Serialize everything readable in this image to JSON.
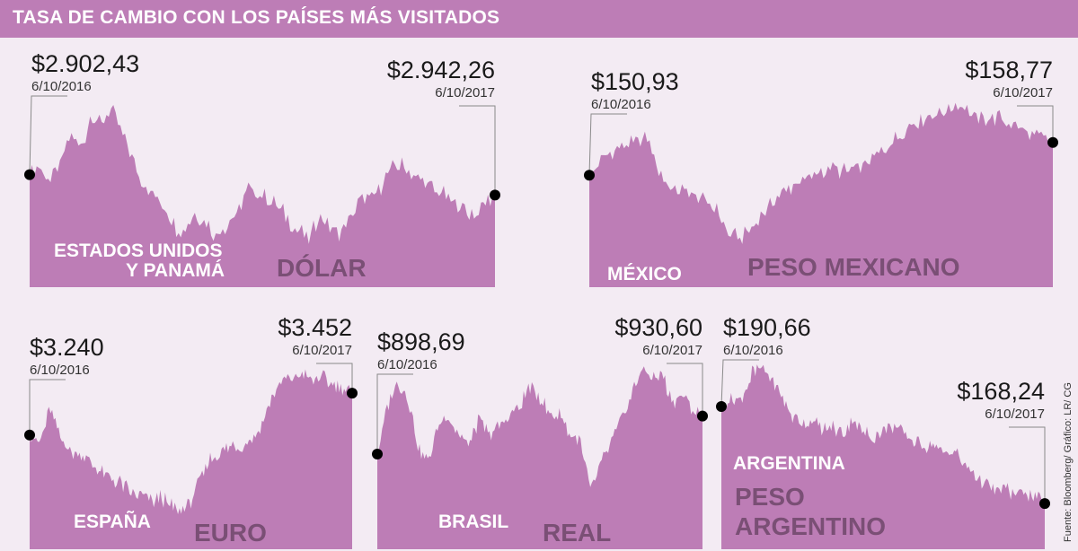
{
  "title": "TASA DE CAMBIO CON LOS PAÍSES MÁS VISITADOS",
  "source": "Fuente: Bloomberg/ Gráfico: LR/ CG",
  "colors": {
    "background": "#f3ebf3",
    "header": "#bd7db6",
    "area": "#bd7db6",
    "currency_label": "#7a4f75",
    "country_label": "#ffffff",
    "marker": "#000000"
  },
  "chart_data": [
    {
      "type": "area",
      "country": [
        "ESTADOS UNIDOS",
        "Y PANAMÁ"
      ],
      "currency": [
        "DÓLAR"
      ],
      "start": {
        "value": "$2.902,43",
        "date": "6/10/2016"
      },
      "end": {
        "value": "$2.942,26",
        "date": "6/10/2017"
      },
      "series": [
        0.55,
        0.58,
        0.52,
        0.6,
        0.75,
        0.68,
        0.85,
        0.8,
        0.88,
        0.75,
        0.62,
        0.5,
        0.45,
        0.4,
        0.3,
        0.28,
        0.35,
        0.32,
        0.25,
        0.3,
        0.35,
        0.48,
        0.45,
        0.43,
        0.4,
        0.33,
        0.28,
        0.24,
        0.35,
        0.3,
        0.27,
        0.32,
        0.44,
        0.42,
        0.5,
        0.58,
        0.6,
        0.55,
        0.52,
        0.48,
        0.45,
        0.42,
        0.38,
        0.35,
        0.4,
        0.45
      ]
    },
    {
      "type": "area",
      "country": [
        "MÉXICO"
      ],
      "currency": [
        "PESO MEXICANO"
      ],
      "start": {
        "value": "$150,93",
        "date": "6/10/2016"
      },
      "end": {
        "value": "$158,77",
        "date": "6/10/2017"
      },
      "series": [
        0.58,
        0.65,
        0.7,
        0.72,
        0.75,
        0.78,
        0.6,
        0.52,
        0.5,
        0.48,
        0.45,
        0.4,
        0.28,
        0.25,
        0.3,
        0.38,
        0.45,
        0.5,
        0.55,
        0.56,
        0.6,
        0.62,
        0.6,
        0.62,
        0.64,
        0.68,
        0.75,
        0.8,
        0.85,
        0.88,
        0.9,
        0.92,
        0.95,
        0.9,
        0.87,
        0.88,
        0.86,
        0.83,
        0.8,
        0.78,
        0.75
      ]
    },
    {
      "type": "area",
      "country": [
        "ESPAÑA"
      ],
      "currency": [
        "EURO"
      ],
      "start": {
        "value": "$3.240",
        "date": "6/10/2016"
      },
      "end": {
        "value": "$3.452",
        "date": "6/10/2017"
      },
      "series": [
        0.6,
        0.55,
        0.75,
        0.58,
        0.52,
        0.5,
        0.45,
        0.4,
        0.37,
        0.35,
        0.3,
        0.28,
        0.25,
        0.28,
        0.22,
        0.2,
        0.25,
        0.38,
        0.48,
        0.5,
        0.55,
        0.54,
        0.58,
        0.65,
        0.8,
        0.88,
        0.9,
        0.92,
        0.88,
        0.9,
        0.86,
        0.85,
        0.82
      ]
    },
    {
      "type": "area",
      "country": [
        "BRASIL"
      ],
      "currency": [
        "REAL"
      ],
      "start": {
        "value": "$898,69",
        "date": "6/10/2016"
      },
      "end": {
        "value": "$930,60",
        "date": "6/10/2017"
      },
      "series": [
        0.5,
        0.75,
        0.88,
        0.8,
        0.55,
        0.45,
        0.65,
        0.7,
        0.6,
        0.55,
        0.68,
        0.6,
        0.65,
        0.7,
        0.75,
        0.85,
        0.8,
        0.7,
        0.72,
        0.6,
        0.55,
        0.3,
        0.45,
        0.55,
        0.68,
        0.8,
        0.95,
        0.9,
        0.92,
        0.78,
        0.8,
        0.75,
        0.7
      ]
    },
    {
      "type": "area",
      "country": [
        "ARGENTINA"
      ],
      "currency": [
        "PESO",
        "ARGENTINO"
      ],
      "start": {
        "value": "$190,66",
        "date": "6/10/2016"
      },
      "end": {
        "value": "$168,24",
        "date": "6/10/2017"
      },
      "series": [
        0.75,
        0.8,
        0.78,
        0.92,
        0.95,
        0.9,
        0.8,
        0.7,
        0.66,
        0.68,
        0.62,
        0.65,
        0.6,
        0.68,
        0.62,
        0.58,
        0.62,
        0.65,
        0.6,
        0.57,
        0.55,
        0.55,
        0.5,
        0.52,
        0.45,
        0.4,
        0.35,
        0.3,
        0.32,
        0.28,
        0.3,
        0.27,
        0.24
      ]
    }
  ]
}
